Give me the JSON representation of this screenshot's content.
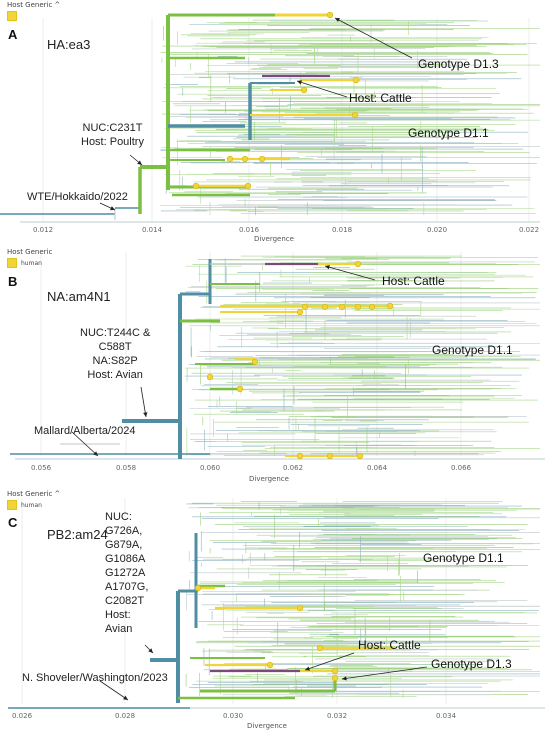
{
  "header": {
    "label": "Host Generic",
    "legend_label": "human"
  },
  "colors": {
    "human": "#f0d43a",
    "cattle": "#7a4a7a",
    "avian_branch": "#4f8ea3",
    "d11_branch": "#7bc043",
    "light_green": "#a9d98c",
    "gray_branch": "#bfc7c9",
    "grid": "#ececec"
  },
  "xaxis_label": "Divergence",
  "panels": [
    {
      "letter": "A",
      "segment": "HA:ea3",
      "ticks": [
        "0.012",
        "0.014",
        "0.016",
        "0.018",
        "0.020",
        "0.022"
      ],
      "annotations": {
        "root_strain": "WTE/Hokkaido/2022",
        "node_mut_1": "NUC:C231T",
        "node_mut_2": "Host: Poultry",
        "cattle": "Host: Cattle",
        "genotype_a": "Genotype D1.3",
        "genotype_b": "Genotype D1.1"
      }
    },
    {
      "letter": "B",
      "segment": "NA:am4N1",
      "ticks": [
        "0.056",
        "0.058",
        "0.060",
        "0.062",
        "0.064",
        "0.066"
      ],
      "annotations": {
        "root_strain": "Mallard/Alberta/2024",
        "node_mut_1": "NUC:T244C &",
        "node_mut_2": "C588T",
        "node_mut_3": "NA:S82P",
        "node_mut_4": "Host: Avian",
        "cattle": "Host: Cattle",
        "genotype_b": "Genotype D1.1"
      }
    },
    {
      "letter": "C",
      "segment": "PB2:am24",
      "ticks": [
        "0.026",
        "0.028",
        "0.030",
        "0.032",
        "0.034"
      ],
      "annotations": {
        "root_strain": "N. Shoveler/Washington/2023",
        "node_mut_1": "NUC:",
        "node_mut_2": "G726A,",
        "node_mut_3": "G879A,",
        "node_mut_4": "G1086A",
        "node_mut_5": "G1272A",
        "node_mut_6": "A1707G,",
        "node_mut_7": "C2082T",
        "node_mut_8": "Host:",
        "node_mut_9": "Avian",
        "cattle": "Host: Cattle",
        "genotype_a": "Genotype D1.3",
        "genotype_b": "Genotype D1.1"
      }
    }
  ]
}
